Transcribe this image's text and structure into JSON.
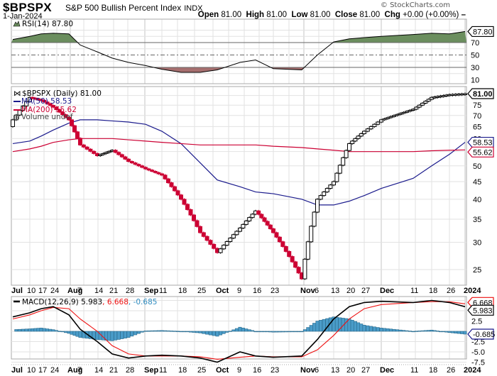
{
  "header": {
    "symbol": "$BPSPX",
    "name": "S&P 500 Bullish Percent Index",
    "exchange": "INDX",
    "date": "1-Jan-2024",
    "watermark": "© StockCharts.com",
    "ohlc": {
      "open_label": "Open",
      "open": "81.00",
      "high_label": "High",
      "high": "81.00",
      "low_label": "Low",
      "low": "81.00",
      "close_label": "Close",
      "close": "81.00",
      "chg_label": "Chg",
      "chg": "+0.00 (+0.00%)"
    }
  },
  "rsi_panel": {
    "legend": "RSI(14) 87.80",
    "value_tag": "87.80",
    "ticks": [
      "70",
      "50",
      "30",
      "10"
    ]
  },
  "price_panel": {
    "legend_main": "$BPSPX (Daily) 81.00",
    "legend_ma50": "MA(50) 58.53",
    "legend_ma200": "MA(200) 55.62",
    "legend_volume": "Volume undef",
    "last_tag": "81.00",
    "ma50_tag": "58.53",
    "ma200_tag": "55.62",
    "ticks": [
      "75",
      "70",
      "65",
      "60",
      "50",
      "45",
      "40",
      "35",
      "30",
      "25"
    ]
  },
  "macd_panel": {
    "legend_name": "MACD(12,26,9)",
    "legend_macd": "5.983",
    "legend_signal": "6.668",
    "legend_hist": "-0.685",
    "macd_tag": "5.983",
    "signal_tag": "6.668",
    "hist_tag": "-0.685",
    "ticks": [
      "7.5",
      "5.0",
      "2.5",
      "0.0",
      "-2.5",
      "-5.0",
      "-7.5"
    ]
  },
  "x_axis": {
    "labels": [
      {
        "t": "Jul",
        "bold": true
      },
      {
        "t": "10"
      },
      {
        "t": "17"
      },
      {
        "t": "24"
      },
      {
        "t": "Aug",
        "bold": true
      },
      {
        "t": "7"
      },
      {
        "t": "14"
      },
      {
        "t": "21"
      },
      {
        "t": "28"
      },
      {
        "t": "Sep",
        "bold": true
      },
      {
        "t": "11"
      },
      {
        "t": "18"
      },
      {
        "t": "25"
      },
      {
        "t": "Oct",
        "bold": true
      },
      {
        "t": "9"
      },
      {
        "t": "16"
      },
      {
        "t": "23"
      },
      {
        "t": "Nov",
        "bold": true
      },
      {
        "t": "6"
      },
      {
        "t": "13"
      },
      {
        "t": "20"
      },
      {
        "t": "27"
      },
      {
        "t": "Dec",
        "bold": true
      },
      {
        "t": "11"
      },
      {
        "t": "18"
      },
      {
        "t": "26"
      },
      {
        "t": "2024",
        "bold": true
      }
    ]
  },
  "colors": {
    "up_candle": "#ffffff",
    "down_candle": "#cc0033",
    "ma50": "#1a1a8c",
    "ma200": "#cc0033",
    "rsi_overbought_fill": "#6b8e5e",
    "rsi_oversold_fill": "#a66f6f",
    "macd_line": "#000000",
    "signal_line": "#ee1111",
    "histogram": "#4a9cc9",
    "grid": "#dddddd"
  },
  "chart_data": [
    {
      "type": "line",
      "title": "RSI(14)",
      "x": [
        "Jul 3",
        "Jul 10",
        "Jul 17",
        "Jul 24",
        "Jul 31",
        "Aug 7",
        "Aug 14",
        "Aug 21",
        "Aug 28",
        "Sep 5",
        "Sep 11",
        "Sep 18",
        "Sep 25",
        "Oct 2",
        "Oct 9",
        "Oct 16",
        "Oct 23",
        "Oct 30",
        "Nov 6",
        "Nov 13",
        "Nov 20",
        "Nov 27",
        "Dec 4",
        "Dec 11",
        "Dec 18",
        "Dec 26",
        "Jan 1"
      ],
      "values": [
        75,
        80,
        84,
        85,
        84,
        66,
        55,
        45,
        38,
        33,
        27,
        22,
        22,
        26,
        38,
        42,
        28,
        26,
        50,
        71,
        76,
        78,
        80,
        83,
        85,
        84,
        87.8
      ],
      "ylim": [
        0,
        100
      ],
      "reference_lines": [
        70,
        50,
        30
      ]
    },
    {
      "type": "bar",
      "subtype": "candlestick",
      "title": "$BPSPX (Daily)",
      "x": [
        "Jul 3",
        "Jul 10",
        "Jul 17",
        "Jul 24",
        "Jul 31",
        "Aug 7",
        "Aug 14",
        "Aug 21",
        "Aug 28",
        "Sep 5",
        "Sep 11",
        "Sep 18",
        "Sep 25",
        "Oct 2",
        "Oct 9",
        "Oct 16",
        "Oct 23",
        "Oct 30",
        "Nov 6",
        "Nov 13",
        "Nov 20",
        "Nov 27",
        "Dec 4",
        "Dec 11",
        "Dec 18",
        "Dec 26",
        "Jan 1"
      ],
      "close": [
        68,
        79,
        77.5,
        74,
        68,
        57.5,
        53.5,
        55.5,
        51.5,
        49,
        47,
        40,
        32,
        28,
        33,
        37,
        32,
        23.5,
        40,
        45,
        58,
        63,
        68,
        73,
        79,
        80.5,
        81
      ],
      "series": [
        {
          "name": "MA(50)",
          "values": [
            58,
            59,
            61,
            63.5,
            66.5,
            68,
            68,
            67.5,
            67,
            66,
            63,
            58,
            51,
            45.5,
            43.5,
            42,
            41.5,
            40,
            38.5,
            38.5,
            39.5,
            41,
            43,
            46,
            50,
            54,
            58.53
          ]
        },
        {
          "name": "MA(200)",
          "values": [
            55,
            56,
            57,
            58.5,
            59.5,
            60,
            60,
            60,
            59.5,
            59,
            58.5,
            58,
            57.5,
            57.5,
            57.5,
            57.5,
            57,
            56.5,
            56,
            55.5,
            55,
            55,
            55,
            55,
            55.3,
            55.5,
            55.62
          ]
        }
      ],
      "ylim": [
        22,
        82
      ],
      "yscale": "log"
    },
    {
      "type": "line",
      "title": "MACD(12,26,9)",
      "x": [
        "Jul 3",
        "Jul 10",
        "Jul 17",
        "Jul 24",
        "Jul 31",
        "Aug 7",
        "Aug 14",
        "Aug 21",
        "Aug 28",
        "Sep 5",
        "Sep 11",
        "Sep 18",
        "Sep 25",
        "Oct 2",
        "Oct 9",
        "Oct 16",
        "Oct 23",
        "Oct 30",
        "Nov 6",
        "Nov 13",
        "Nov 20",
        "Nov 27",
        "Dec 4",
        "Dec 11",
        "Dec 18",
        "Dec 26",
        "Jan 1"
      ],
      "series": [
        {
          "name": "MACD",
          "values": [
            3.5,
            4.5,
            5.5,
            6.0,
            4.0,
            0.5,
            -2.5,
            -5.5,
            -6.5,
            -6.0,
            -5.8,
            -6.0,
            -6.5,
            -7.5,
            -5.0,
            -6.0,
            -6.3,
            -6.0,
            -2.0,
            3.0,
            6.0,
            7.0,
            7.3,
            7.0,
            7.5,
            7.0,
            5.983
          ]
        },
        {
          "name": "Signal",
          "values": [
            3.0,
            4.0,
            5.0,
            5.8,
            5.5,
            3.0,
            0.0,
            -3.5,
            -5.5,
            -6.0,
            -6.0,
            -6.0,
            -6.2,
            -6.8,
            -6.3,
            -6.0,
            -6.2,
            -6.2,
            -4.5,
            -1.0,
            3.0,
            5.5,
            6.5,
            7.0,
            7.2,
            7.2,
            6.668
          ]
        },
        {
          "name": "Histogram",
          "values": [
            0.4,
            0.6,
            0.8,
            0.4,
            -0.5,
            -1.5,
            -2.0,
            -2.3,
            -1.5,
            0.1,
            0.2,
            0.0,
            -0.4,
            -1.2,
            1.0,
            0.0,
            -0.2,
            -0.1,
            2.5,
            3.5,
            3.0,
            1.5,
            0.8,
            0.0,
            0.3,
            -0.3,
            -0.685
          ]
        }
      ],
      "ylim": [
        -8,
        8.5
      ]
    }
  ]
}
